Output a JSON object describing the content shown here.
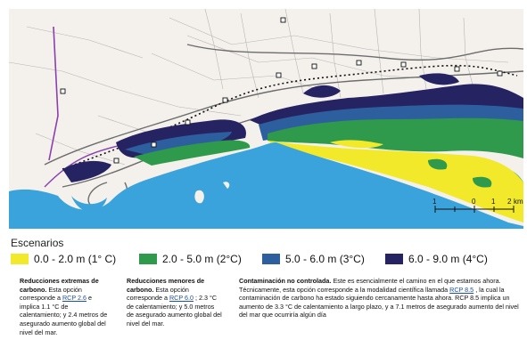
{
  "legend": {
    "title": "Escenarios",
    "items": [
      {
        "label": "0.0 - 2.0 m (1° C)",
        "color": "#f2e92a"
      },
      {
        "label": "2.0 - 5.0 m (2°C)",
        "color": "#2f9a4b"
      },
      {
        "label": "5.0 - 6.0 m (3°C)",
        "color": "#2d5f9e"
      },
      {
        "label": "6.0 - 9.0 m (4°C)",
        "color": "#262363"
      }
    ]
  },
  "scale_bar": {
    "ticks": [
      "1",
      "0",
      "1",
      "2"
    ],
    "unit": "km"
  },
  "map_colors": {
    "sea": "#3aa3dc",
    "land": "#f4f1ec"
  },
  "scenarios": [
    {
      "heading": "Reducciones extremas de carbono.",
      "text1": "Esta opción corresponde a",
      "link": "RCP 2.6",
      "text2": "e implica 1.1 °C de calentamiento; y 2.4 metros de asegurado aumento global del nivel del mar."
    },
    {
      "heading": "Reducciones menores de carbono.",
      "text1": "Esta opción corresponde a",
      "link": "RCP 6.0",
      "text2": "; 2.3 °C de calentamiento; y 5.0 metros de asegurado aumento global del nivel del mar."
    },
    {
      "heading": "Contaminación no controlada.",
      "text1": "Este es esencialmente el camino en el que estamos ahora. Técnicamente, esta opción corresponde a la modalidad científica llamada",
      "link": "RCP 8.5",
      "text2": ", la cual la contaminación de carbono ha estado siguiendo cercanamente hasta ahora. RCP 8.5 implica un aumento de 3.3 °C de calentamiento a largo plazo, y a 7.1 metros de asegurado aumento del nivel del mar que ocurriría algún día"
    }
  ]
}
